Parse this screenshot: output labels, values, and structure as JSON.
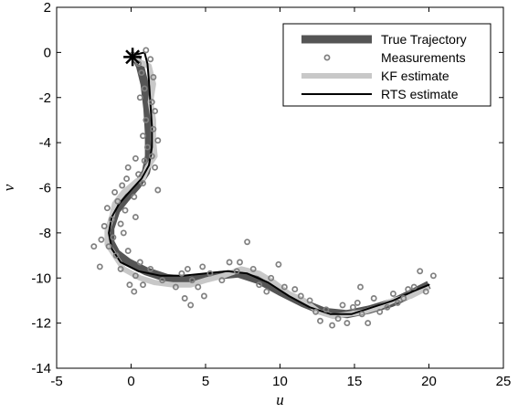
{
  "chart_data": {
    "type": "line",
    "title": "",
    "xlabel": "u",
    "ylabel": "v",
    "xlim": [
      -5,
      25
    ],
    "ylim": [
      -14,
      2
    ],
    "xticks": [
      -5,
      0,
      5,
      10,
      15,
      20,
      25
    ],
    "yticks": [
      2,
      0,
      -2,
      -4,
      -6,
      -8,
      -10,
      -12,
      -14
    ],
    "grid": false,
    "legend_position": "top-right",
    "legend": [
      "True Trajectory",
      "Measurements",
      "KF estimate",
      "RTS estimate"
    ],
    "start_marker": {
      "x": 0.1,
      "y": -0.2
    },
    "series": [
      {
        "name": "True Trajectory",
        "style": "thick dark gray line",
        "color": "#555555",
        "points": [
          [
            0.3,
            -0.2
          ],
          [
            0.6,
            -0.6
          ],
          [
            0.9,
            -1.4
          ],
          [
            1.1,
            -2.5
          ],
          [
            1.2,
            -3.6
          ],
          [
            1.2,
            -4.6
          ],
          [
            1.0,
            -5.3
          ],
          [
            0.4,
            -5.9
          ],
          [
            -0.4,
            -6.5
          ],
          [
            -1.0,
            -7.0
          ],
          [
            -1.4,
            -7.8
          ],
          [
            -1.4,
            -8.4
          ],
          [
            -1.0,
            -8.9
          ],
          [
            -0.2,
            -9.3
          ],
          [
            1.0,
            -9.7
          ],
          [
            2.4,
            -10.0
          ],
          [
            4.0,
            -10.1
          ],
          [
            5.6,
            -9.9
          ],
          [
            7.2,
            -9.8
          ],
          [
            8.6,
            -10.1
          ],
          [
            10.0,
            -10.6
          ],
          [
            11.5,
            -11.1
          ],
          [
            13.0,
            -11.5
          ],
          [
            14.5,
            -11.6
          ],
          [
            16.0,
            -11.4
          ],
          [
            17.5,
            -11.1
          ],
          [
            18.8,
            -10.7
          ],
          [
            20.0,
            -10.3
          ]
        ]
      },
      {
        "name": "Measurements",
        "style": "open circles",
        "color": "#808080",
        "points": [
          [
            0.1,
            -0.1
          ],
          [
            0.5,
            -0.5
          ],
          [
            1.0,
            0.1
          ],
          [
            1.3,
            -0.3
          ],
          [
            0.7,
            -0.9
          ],
          [
            1.5,
            -1.1
          ],
          [
            0.9,
            -1.6
          ],
          [
            1.4,
            -2.2
          ],
          [
            0.6,
            -2.0
          ],
          [
            1.6,
            -2.6
          ],
          [
            1.0,
            -3.0
          ],
          [
            1.5,
            -3.4
          ],
          [
            0.8,
            -3.7
          ],
          [
            1.8,
            -3.9
          ],
          [
            1.1,
            -4.2
          ],
          [
            1.4,
            -4.6
          ],
          [
            0.9,
            -4.8
          ],
          [
            1.6,
            -5.1
          ],
          [
            0.3,
            -4.7
          ],
          [
            -0.2,
            -5.1
          ],
          [
            0.5,
            -5.4
          ],
          [
            -0.3,
            -5.6
          ],
          [
            0.8,
            -5.8
          ],
          [
            1.8,
            -6.1
          ],
          [
            -0.6,
            -5.9
          ],
          [
            -1.1,
            -6.2
          ],
          [
            0.2,
            -6.4
          ],
          [
            -0.9,
            -6.6
          ],
          [
            -1.6,
            -6.9
          ],
          [
            -0.4,
            -7.0
          ],
          [
            0.3,
            -7.3
          ],
          [
            -1.3,
            -7.4
          ],
          [
            -0.7,
            -7.6
          ],
          [
            -1.8,
            -7.7
          ],
          [
            -0.5,
            -8.0
          ],
          [
            -1.2,
            -8.2
          ],
          [
            -2.0,
            -8.3
          ],
          [
            -1.5,
            -8.6
          ],
          [
            -2.5,
            -8.6
          ],
          [
            -0.2,
            -8.8
          ],
          [
            -1.0,
            -9.0
          ],
          [
            0.6,
            -9.3
          ],
          [
            -2.1,
            -9.5
          ],
          [
            -0.7,
            -9.6
          ],
          [
            0.3,
            -9.9
          ],
          [
            1.3,
            -9.6
          ],
          [
            -0.1,
            -10.3
          ],
          [
            0.8,
            -10.3
          ],
          [
            0.2,
            -10.6
          ],
          [
            2.1,
            -10.1
          ],
          [
            3.0,
            -10.4
          ],
          [
            3.4,
            -9.8
          ],
          [
            3.8,
            -9.6
          ],
          [
            4.1,
            -10.1
          ],
          [
            4.5,
            -10.4
          ],
          [
            3.6,
            -10.9
          ],
          [
            4.0,
            -11.2
          ],
          [
            4.9,
            -10.8
          ],
          [
            5.3,
            -9.8
          ],
          [
            4.8,
            -9.5
          ],
          [
            6.1,
            -10.1
          ],
          [
            6.6,
            -9.3
          ],
          [
            7.1,
            -9.7
          ],
          [
            7.3,
            -9.3
          ],
          [
            7.8,
            -8.4
          ],
          [
            8.2,
            -9.6
          ],
          [
            8.6,
            -10.3
          ],
          [
            9.1,
            -10.6
          ],
          [
            9.4,
            -10.0
          ],
          [
            9.9,
            -9.4
          ],
          [
            10.3,
            -10.4
          ],
          [
            11.0,
            -10.5
          ],
          [
            11.4,
            -10.8
          ],
          [
            12.0,
            -11.0
          ],
          [
            12.4,
            -11.5
          ],
          [
            12.7,
            -11.9
          ],
          [
            13.1,
            -11.4
          ],
          [
            13.5,
            -12.1
          ],
          [
            13.9,
            -11.8
          ],
          [
            14.2,
            -11.2
          ],
          [
            14.5,
            -12.0
          ],
          [
            14.9,
            -11.3
          ],
          [
            15.2,
            -11.1
          ],
          [
            15.5,
            -11.6
          ],
          [
            15.9,
            -12.0
          ],
          [
            16.3,
            -10.9
          ],
          [
            16.7,
            -11.5
          ],
          [
            17.2,
            -11.3
          ],
          [
            17.6,
            -10.7
          ],
          [
            17.9,
            -11.1
          ],
          [
            18.3,
            -10.9
          ],
          [
            18.6,
            -10.5
          ],
          [
            19.0,
            -10.4
          ],
          [
            19.4,
            -9.7
          ],
          [
            19.8,
            -10.6
          ],
          [
            20.3,
            -9.9
          ],
          [
            15.4,
            -10.4
          ]
        ]
      },
      {
        "name": "KF estimate",
        "style": "thick light gray line",
        "color": "#c8c8c8",
        "points": [
          [
            0.1,
            -0.2
          ],
          [
            0.5,
            -0.4
          ],
          [
            1.2,
            -0.6
          ],
          [
            1.5,
            -1.4
          ],
          [
            1.3,
            -2.2
          ],
          [
            1.5,
            -3.0
          ],
          [
            1.5,
            -3.9
          ],
          [
            1.6,
            -4.6
          ],
          [
            1.1,
            -5.1
          ],
          [
            0.8,
            -5.6
          ],
          [
            0.4,
            -5.7
          ],
          [
            -0.5,
            -6.2
          ],
          [
            -1.1,
            -6.7
          ],
          [
            -1.3,
            -7.3
          ],
          [
            -1.6,
            -7.9
          ],
          [
            -1.6,
            -8.5
          ],
          [
            -1.0,
            -9.1
          ],
          [
            -0.5,
            -9.6
          ],
          [
            0.6,
            -10.0
          ],
          [
            1.6,
            -10.2
          ],
          [
            2.8,
            -10.3
          ],
          [
            4.0,
            -10.3
          ],
          [
            5.0,
            -10.1
          ],
          [
            6.2,
            -9.9
          ],
          [
            7.4,
            -9.6
          ],
          [
            8.6,
            -9.8
          ],
          [
            9.6,
            -10.2
          ],
          [
            10.6,
            -10.7
          ],
          [
            11.6,
            -11.0
          ],
          [
            12.6,
            -11.5
          ],
          [
            13.6,
            -11.7
          ],
          [
            14.6,
            -11.6
          ],
          [
            15.6,
            -11.5
          ],
          [
            16.6,
            -11.3
          ],
          [
            17.6,
            -11.0
          ],
          [
            18.8,
            -10.8
          ],
          [
            20.0,
            -10.4
          ]
        ]
      },
      {
        "name": "RTS estimate",
        "style": "thin black line",
        "color": "#000000",
        "points": [
          [
            0.3,
            -0.1
          ],
          [
            0.9,
            0.0
          ],
          [
            1.1,
            -0.5
          ],
          [
            1.2,
            -1.3
          ],
          [
            1.3,
            -2.3
          ],
          [
            1.4,
            -3.3
          ],
          [
            1.4,
            -4.2
          ],
          [
            1.2,
            -5.0
          ],
          [
            0.7,
            -5.6
          ],
          [
            0.0,
            -6.1
          ],
          [
            -0.8,
            -6.7
          ],
          [
            -1.3,
            -7.3
          ],
          [
            -1.5,
            -8.0
          ],
          [
            -1.3,
            -8.7
          ],
          [
            -0.7,
            -9.3
          ],
          [
            0.5,
            -9.7
          ],
          [
            2.0,
            -9.9
          ],
          [
            3.5,
            -9.9
          ],
          [
            5.0,
            -9.8
          ],
          [
            6.5,
            -9.7
          ],
          [
            7.8,
            -9.8
          ],
          [
            9.2,
            -10.2
          ],
          [
            10.6,
            -10.8
          ],
          [
            12.0,
            -11.3
          ],
          [
            13.4,
            -11.6
          ],
          [
            14.8,
            -11.6
          ],
          [
            16.2,
            -11.3
          ],
          [
            17.6,
            -11.0
          ],
          [
            18.9,
            -10.6
          ],
          [
            20.0,
            -10.3
          ]
        ]
      }
    ]
  }
}
